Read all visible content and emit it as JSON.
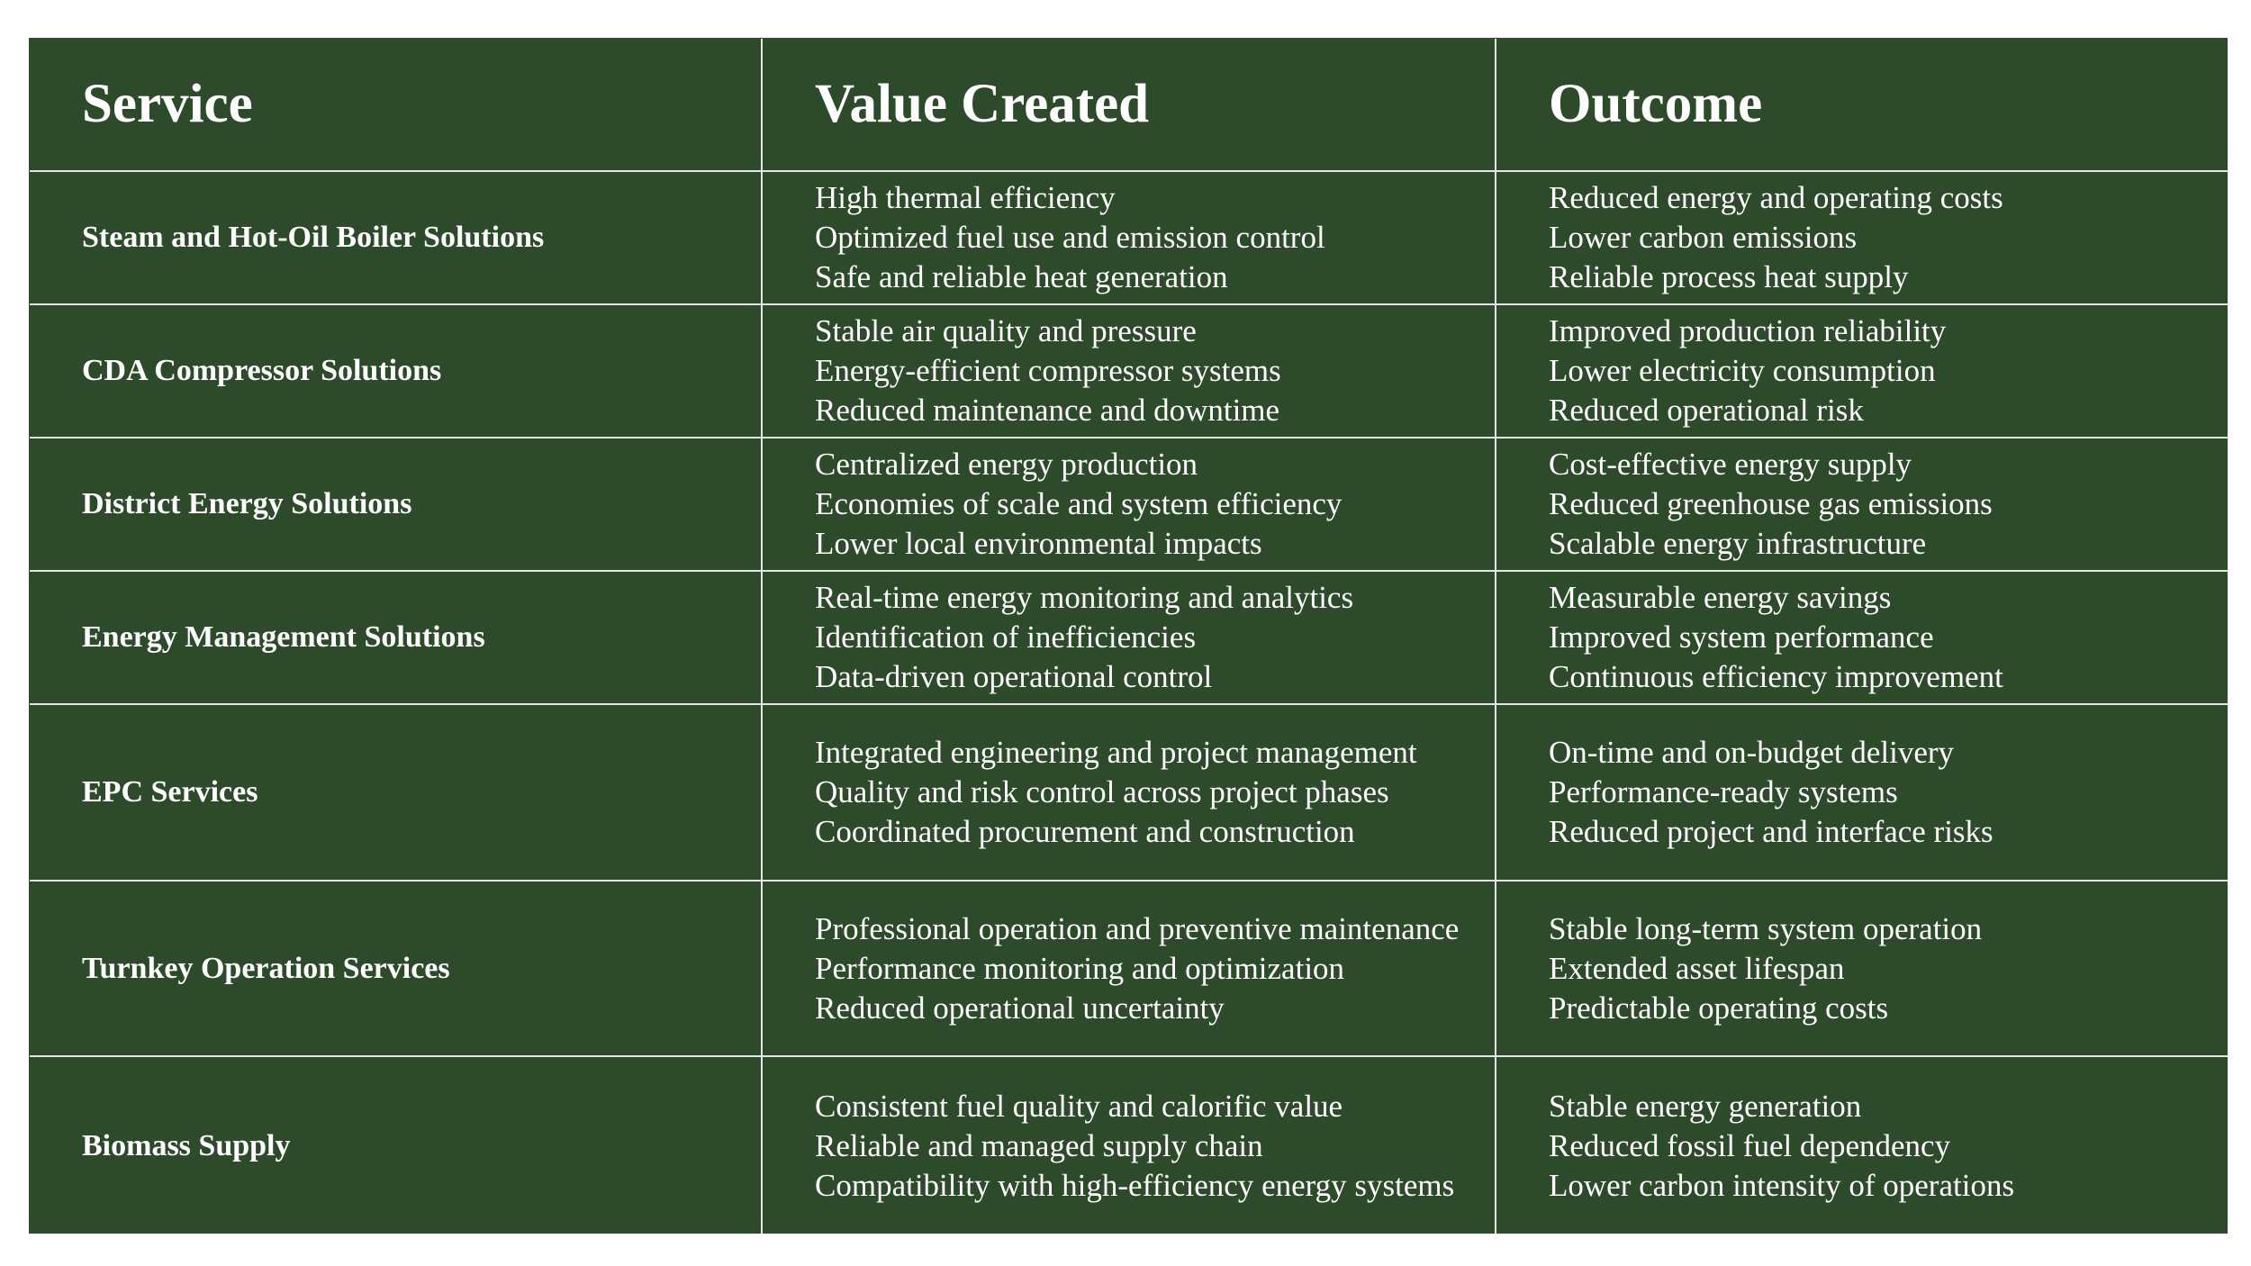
{
  "header": {
    "columns": [
      "Service",
      "Value Created",
      "Outcome"
    ]
  },
  "rows": [
    {
      "service": "Steam and Hot-Oil Boiler Solutions",
      "value_created": [
        "High thermal efficiency",
        "Optimized fuel use and emission control",
        "Safe and reliable heat generation"
      ],
      "outcome": [
        "Reduced energy and operating costs",
        "Lower carbon emissions",
        "Reliable process heat supply"
      ]
    },
    {
      "service": "CDA Compressor Solutions",
      "value_created": [
        "Stable air quality and pressure",
        "Energy-efficient compressor systems",
        "Reduced maintenance and downtime"
      ],
      "outcome": [
        "Improved production reliability",
        "Lower electricity consumption",
        "Reduced operational risk"
      ]
    },
    {
      "service": "District Energy Solutions",
      "value_created": [
        "Centralized energy production",
        "Economies of scale and system efficiency",
        "Lower local environmental impacts"
      ],
      "outcome": [
        "Cost-effective energy supply",
        "Reduced greenhouse gas emissions",
        "Scalable energy infrastructure"
      ]
    },
    {
      "service": "Energy Management Solutions",
      "value_created": [
        "Real-time energy monitoring and analytics",
        "Identification of inefficiencies",
        "Data-driven operational control"
      ],
      "outcome": [
        "Measurable energy savings",
        "Improved system performance",
        "Continuous efficiency improvement"
      ]
    },
    {
      "service": "EPC Services",
      "value_created": [
        "Integrated engineering and project management",
        "Quality and risk control across project phases",
        "Coordinated procurement and construction"
      ],
      "outcome": [
        "On-time and on-budget delivery",
        "Performance-ready systems",
        "Reduced project and interface risks"
      ]
    },
    {
      "service": "Turnkey Operation Services",
      "value_created": [
        "Professional operation and preventive maintenance",
        "Performance monitoring and optimization",
        "Reduced operational uncertainty"
      ],
      "outcome": [
        "Stable long-term system operation",
        "Extended asset lifespan",
        "Predictable operating costs"
      ]
    },
    {
      "service": "Biomass Supply",
      "value_created": [
        "Consistent fuel quality and calorific value",
        "Reliable and managed supply chain",
        "Compatibility with high-efficiency energy systems"
      ],
      "outcome": [
        "Stable energy generation",
        "Reduced fossil fuel dependency",
        "Lower carbon intensity of operations"
      ]
    }
  ]
}
